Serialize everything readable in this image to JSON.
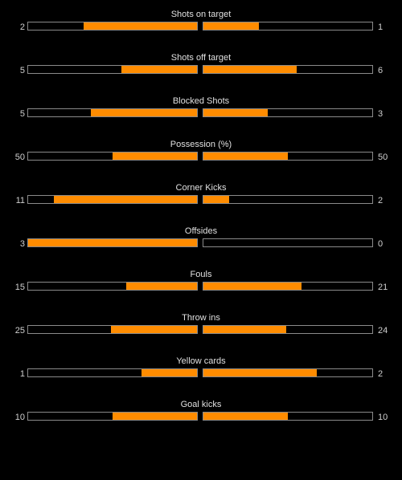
{
  "colors": {
    "background": "#000000",
    "bar_fill": "#ff8c00",
    "bar_border": "#8a8a8a",
    "text": "#d8d8d8"
  },
  "stats": [
    {
      "label": "Shots on target",
      "home": "2",
      "away": "1",
      "home_fill": 0.67,
      "away_fill": 0.33
    },
    {
      "label": "Shots off target",
      "home": "5",
      "away": "6",
      "home_fill": 0.45,
      "away_fill": 0.55
    },
    {
      "label": "Blocked Shots",
      "home": "5",
      "away": "3",
      "home_fill": 0.63,
      "away_fill": 0.38
    },
    {
      "label": "Possession (%)",
      "home": "50",
      "away": "50",
      "home_fill": 0.5,
      "away_fill": 0.5
    },
    {
      "label": "Corner Kicks",
      "home": "11",
      "away": "2",
      "home_fill": 0.85,
      "away_fill": 0.15
    },
    {
      "label": "Offsides",
      "home": "3",
      "away": "0",
      "home_fill": 1.0,
      "away_fill": 0.0
    },
    {
      "label": "Fouls",
      "home": "15",
      "away": "21",
      "home_fill": 0.42,
      "away_fill": 0.58
    },
    {
      "label": "Throw ins",
      "home": "25",
      "away": "24",
      "home_fill": 0.51,
      "away_fill": 0.49
    },
    {
      "label": "Yellow cards",
      "home": "1",
      "away": "2",
      "home_fill": 0.33,
      "away_fill": 0.67
    },
    {
      "label": "Goal kicks",
      "home": "10",
      "away": "10",
      "home_fill": 0.5,
      "away_fill": 0.5
    }
  ]
}
